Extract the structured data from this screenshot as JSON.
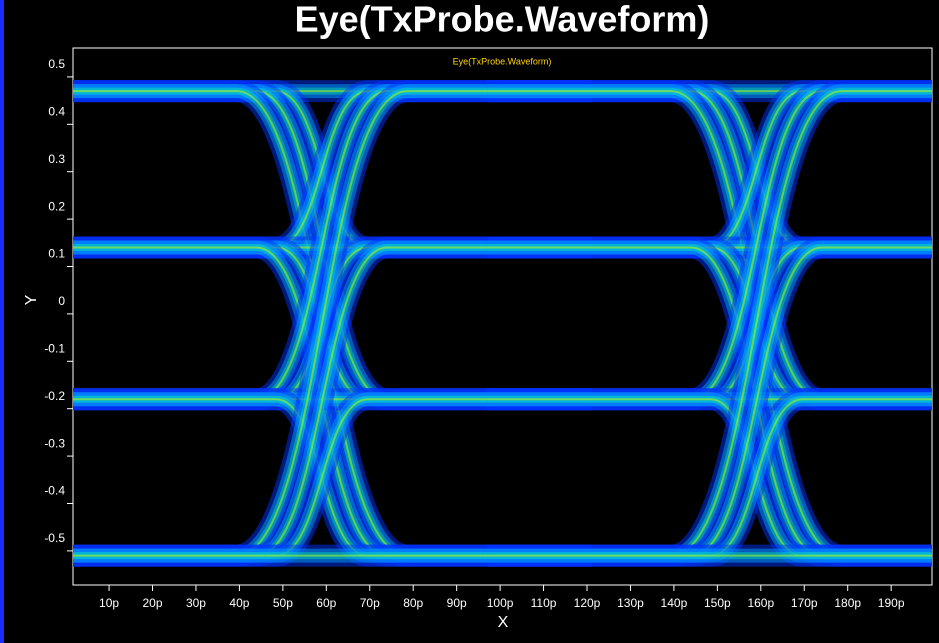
{
  "chart_data": {
    "type": "eye",
    "title": "Eye(TxProbe.Waveform)",
    "subtitle": "Eye(TxProbe.Waveform)",
    "x_label": "X",
    "y_label": "Y",
    "levels": [
      0.47,
      0.14,
      -0.18,
      -0.51
    ],
    "crossings": [
      59,
      159
    ],
    "xlim": [
      1.7,
      199.4
    ],
    "ylim": [
      -0.572,
      0.561
    ],
    "xticks": [
      {
        "value": 10,
        "label": "10p"
      },
      {
        "value": 20,
        "label": "20p"
      },
      {
        "value": 30,
        "label": "30p"
      },
      {
        "value": 40,
        "label": "40p"
      },
      {
        "value": 50,
        "label": "50p"
      },
      {
        "value": 60,
        "label": "60p"
      },
      {
        "value": 70,
        "label": "70p"
      },
      {
        "value": 80,
        "label": "80p"
      },
      {
        "value": 90,
        "label": "90p"
      },
      {
        "value": 100,
        "label": "100p"
      },
      {
        "value": 110,
        "label": "110p"
      },
      {
        "value": 120,
        "label": "120p"
      },
      {
        "value": 130,
        "label": "130p"
      },
      {
        "value": 140,
        "label": "140p"
      },
      {
        "value": 150,
        "label": "150p"
      },
      {
        "value": 160,
        "label": "160p"
      },
      {
        "value": 170,
        "label": "170p"
      },
      {
        "value": 180,
        "label": "180p"
      },
      {
        "value": 190,
        "label": "190p"
      }
    ],
    "yticks": [
      0.5,
      0.4,
      0.3,
      0.2,
      0.1,
      0,
      -0.1,
      -0.2,
      -0.3,
      -0.4,
      -0.5
    ],
    "colors": [
      "#0033ff",
      "#00a8ff",
      "#00f0b0",
      "#c8ff00"
    ]
  }
}
